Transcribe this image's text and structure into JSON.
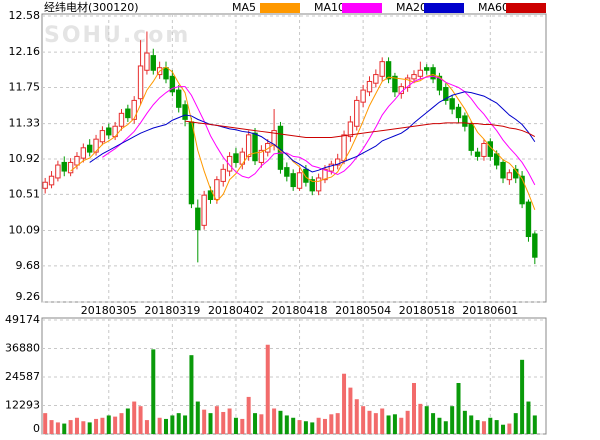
{
  "chart_data": [
    {
      "type": "candlestick",
      "title": "经纬电材(300120)",
      "watermark": "SOHU.com",
      "categories": [
        null,
        null,
        null,
        null,
        null,
        null,
        null,
        null,
        null,
        null,
        "20180305",
        null,
        null,
        null,
        null,
        null,
        null,
        null,
        null,
        null,
        "20180319",
        null,
        null,
        null,
        null,
        null,
        null,
        null,
        null,
        null,
        "20180402",
        null,
        null,
        null,
        null,
        null,
        null,
        null,
        null,
        null,
        "20180418",
        null,
        null,
        null,
        null,
        null,
        null,
        null,
        null,
        null,
        "20180504",
        null,
        null,
        null,
        null,
        null,
        null,
        null,
        null,
        null,
        "20180518",
        null,
        null,
        null,
        null,
        null,
        null,
        null,
        null,
        null,
        "20180601",
        null,
        null,
        null,
        null,
        null,
        null,
        null
      ],
      "open": [
        10.58,
        10.62,
        10.7,
        10.88,
        10.76,
        10.85,
        10.93,
        11.08,
        11.0,
        11.12,
        11.28,
        11.18,
        11.3,
        11.5,
        11.38,
        11.62,
        11.95,
        12.12,
        11.9,
        11.98,
        11.88,
        11.72,
        11.55,
        11.35,
        10.35,
        10.15,
        10.55,
        10.45,
        10.66,
        10.78,
        10.98,
        10.86,
        10.95,
        11.22,
        10.88,
        11.0,
        11.08,
        11.3,
        10.82,
        10.75,
        10.58,
        10.8,
        10.68,
        10.55,
        10.68,
        10.78,
        10.85,
        10.9,
        11.18,
        11.3,
        11.58,
        11.7,
        11.8,
        11.88,
        12.05,
        11.88,
        11.68,
        11.75,
        11.85,
        11.88,
        11.98,
        11.98,
        11.88,
        11.75,
        11.62,
        11.52,
        11.42,
        11.32,
        11.0,
        10.95,
        11.12,
        10.98,
        10.88,
        10.68,
        10.8,
        10.72,
        10.42,
        10.05
      ],
      "high": [
        10.7,
        10.78,
        10.9,
        10.95,
        10.93,
        11.0,
        11.1,
        11.15,
        11.2,
        11.3,
        11.33,
        11.35,
        11.5,
        11.55,
        11.65,
        12.3,
        12.4,
        12.2,
        12.05,
        12.05,
        11.95,
        11.78,
        11.6,
        11.4,
        10.45,
        10.55,
        10.6,
        10.72,
        10.86,
        11.0,
        11.05,
        11.05,
        11.25,
        11.28,
        11.08,
        11.15,
        11.5,
        11.35,
        10.88,
        10.8,
        10.82,
        10.85,
        10.72,
        10.75,
        10.85,
        10.9,
        10.98,
        11.25,
        11.42,
        11.65,
        11.78,
        11.88,
        11.96,
        12.1,
        12.1,
        11.92,
        11.8,
        11.9,
        11.95,
        12.05,
        12.02,
        12.02,
        11.92,
        11.8,
        11.66,
        11.56,
        11.46,
        11.36,
        11.05,
        11.15,
        11.16,
        11.02,
        10.92,
        10.8,
        10.85,
        10.78,
        10.45,
        10.08
      ],
      "low": [
        10.52,
        10.58,
        10.66,
        10.72,
        10.72,
        10.8,
        10.88,
        10.95,
        10.96,
        11.08,
        11.15,
        11.14,
        11.25,
        11.35,
        11.33,
        11.55,
        11.9,
        11.9,
        11.85,
        11.8,
        11.65,
        11.46,
        11.3,
        10.35,
        9.72,
        10.1,
        10.4,
        10.4,
        10.6,
        10.72,
        10.82,
        10.8,
        10.9,
        10.85,
        10.82,
        10.95,
        11.02,
        10.75,
        10.66,
        10.55,
        10.55,
        10.6,
        10.5,
        10.5,
        10.64,
        10.74,
        10.8,
        10.86,
        11.12,
        11.25,
        11.52,
        11.65,
        11.75,
        11.82,
        11.8,
        11.64,
        11.62,
        11.7,
        11.8,
        11.84,
        11.9,
        11.8,
        11.66,
        11.55,
        11.44,
        11.34,
        11.24,
        10.96,
        10.9,
        10.9,
        10.9,
        10.8,
        10.64,
        10.62,
        10.64,
        10.35,
        9.96,
        9.7
      ],
      "close": [
        10.65,
        10.72,
        10.85,
        10.78,
        10.88,
        10.95,
        11.05,
        11.0,
        11.15,
        11.25,
        11.2,
        11.3,
        11.45,
        11.4,
        11.6,
        12.0,
        12.15,
        11.95,
        11.98,
        11.85,
        11.7,
        11.52,
        11.38,
        10.4,
        10.1,
        10.5,
        10.45,
        10.68,
        10.8,
        10.95,
        10.88,
        11.0,
        11.2,
        10.9,
        11.02,
        11.1,
        11.25,
        10.8,
        10.72,
        10.6,
        10.76,
        10.65,
        10.55,
        10.7,
        10.8,
        10.86,
        10.92,
        11.2,
        11.35,
        11.6,
        11.72,
        11.82,
        11.9,
        12.05,
        11.85,
        11.7,
        11.76,
        11.86,
        11.9,
        11.95,
        11.95,
        11.85,
        11.72,
        11.6,
        11.5,
        11.4,
        11.3,
        11.02,
        10.95,
        11.1,
        10.95,
        10.85,
        10.7,
        10.76,
        10.7,
        10.4,
        10.02,
        9.78
      ],
      "up_color": "#e62e2e",
      "down_color": "#009900",
      "series": [
        {
          "name": "MA5",
          "color": "#ff9900",
          "values": [
            null,
            null,
            null,
            null,
            10.78,
            10.84,
            10.9,
            10.93,
            11.01,
            11.09,
            11.13,
            11.18,
            11.27,
            11.32,
            11.39,
            11.55,
            11.72,
            11.82,
            11.94,
            11.99,
            11.93,
            11.8,
            11.69,
            11.37,
            11.02,
            10.78,
            10.57,
            10.43,
            10.51,
            10.68,
            10.75,
            10.86,
            10.97,
            10.99,
            11.0,
            11.04,
            11.09,
            11.01,
            10.98,
            10.89,
            10.83,
            10.71,
            10.66,
            10.66,
            10.69,
            10.71,
            10.77,
            10.9,
            11.03,
            11.19,
            11.36,
            11.54,
            11.68,
            11.82,
            11.87,
            11.86,
            11.85,
            11.84,
            11.81,
            11.83,
            11.88,
            11.9,
            11.87,
            11.81,
            11.72,
            11.61,
            11.5,
            11.36,
            11.23,
            11.15,
            11.06,
            10.99,
            10.91,
            10.87,
            10.79,
            10.69,
            10.52,
            10.33
          ]
        },
        {
          "name": "MA10",
          "color": "#ff00ff",
          "values": [
            null,
            null,
            null,
            null,
            null,
            null,
            null,
            null,
            null,
            10.94,
            10.99,
            11.04,
            11.1,
            11.17,
            11.24,
            11.34,
            11.45,
            11.55,
            11.63,
            11.69,
            11.74,
            11.76,
            11.76,
            11.66,
            11.51,
            11.36,
            11.19,
            11.06,
            10.94,
            10.85,
            10.77,
            10.72,
            10.7,
            10.75,
            10.84,
            10.9,
            10.98,
            10.99,
            10.99,
            10.95,
            10.94,
            10.9,
            10.84,
            10.82,
            10.79,
            10.77,
            10.74,
            10.78,
            10.85,
            10.94,
            11.04,
            11.16,
            11.29,
            11.43,
            11.53,
            11.61,
            11.7,
            11.76,
            11.82,
            11.85,
            11.87,
            11.88,
            11.86,
            11.81,
            11.78,
            11.75,
            11.7,
            11.62,
            11.52,
            11.44,
            11.34,
            11.25,
            11.14,
            11.05,
            10.97,
            10.88,
            10.76,
            10.62
          ]
        },
        {
          "name": "MA20",
          "color": "#0000cc",
          "values": [
            null,
            null,
            null,
            null,
            null,
            null,
            null,
            10.88,
            10.93,
            10.98,
            11.02,
            11.06,
            11.1,
            11.14,
            11.18,
            11.22,
            11.25,
            11.28,
            11.3,
            11.32,
            11.37,
            11.4,
            11.43,
            11.42,
            11.38,
            11.35,
            11.32,
            11.31,
            11.29,
            11.27,
            11.26,
            11.24,
            11.23,
            11.21,
            11.18,
            11.13,
            11.09,
            11.03,
            10.97,
            10.9,
            10.86,
            10.81,
            10.77,
            10.79,
            10.82,
            10.84,
            10.86,
            10.89,
            10.92,
            10.95,
            10.99,
            11.03,
            11.07,
            11.13,
            11.16,
            11.19,
            11.22,
            11.27,
            11.34,
            11.4,
            11.46,
            11.52,
            11.58,
            11.62,
            11.66,
            11.68,
            11.7,
            11.69,
            11.67,
            11.65,
            11.61,
            11.57,
            11.5,
            11.43,
            11.38,
            11.32,
            11.23,
            11.12
          ]
        },
        {
          "name": "MA60",
          "color": "#cc0000",
          "values": [
            null,
            null,
            null,
            null,
            null,
            null,
            null,
            null,
            null,
            null,
            null,
            null,
            null,
            null,
            null,
            null,
            null,
            null,
            null,
            null,
            null,
            null,
            11.36,
            11.35,
            11.34,
            11.33,
            11.32,
            11.31,
            11.3,
            11.29,
            11.28,
            11.27,
            11.26,
            11.25,
            11.24,
            11.23,
            11.22,
            11.21,
            11.2,
            11.19,
            11.18,
            11.17,
            11.17,
            11.17,
            11.17,
            11.17,
            11.18,
            11.19,
            11.2,
            11.21,
            11.22,
            11.23,
            11.24,
            11.25,
            11.26,
            11.27,
            11.28,
            11.29,
            11.3,
            11.31,
            11.32,
            11.33,
            11.33,
            11.34,
            11.34,
            11.34,
            11.34,
            11.33,
            11.33,
            11.32,
            11.32,
            11.31,
            11.3,
            11.28,
            11.27,
            11.25,
            11.22,
            11.18
          ]
        }
      ],
      "ylim": [
        9.26,
        12.58
      ],
      "yticks": [
        9.26,
        9.68,
        10.09,
        10.51,
        10.92,
        11.33,
        11.75,
        12.16,
        12.58
      ],
      "grid": true
    },
    {
      "type": "bar",
      "values": [
        9000,
        6000,
        5000,
        4500,
        6000,
        7000,
        5500,
        5000,
        6500,
        7000,
        8000,
        7500,
        9000,
        11000,
        14000,
        12000,
        6000,
        36500,
        7000,
        6500,
        8000,
        9000,
        8000,
        34000,
        14000,
        10500,
        9000,
        12000,
        9500,
        11000,
        7000,
        6500,
        16000,
        9000,
        8500,
        38500,
        11000,
        10000,
        8000,
        7000,
        6000,
        5500,
        5000,
        7000,
        6500,
        8500,
        9000,
        26000,
        20000,
        15000,
        12000,
        10000,
        9000,
        11000,
        8000,
        8500,
        7000,
        10000,
        22000,
        13000,
        12000,
        9000,
        7000,
        5500,
        12000,
        22000,
        10000,
        8000,
        6000,
        5500,
        7000,
        6000,
        4000,
        4500,
        9000,
        32000,
        14000,
        8000
      ],
      "up_color": "#f26b6b",
      "down_color": "#0a9a0a",
      "ylim": [
        0,
        49174
      ],
      "yticks": [
        0,
        12293,
        24587,
        36880,
        49174
      ],
      "grid": true
    }
  ]
}
